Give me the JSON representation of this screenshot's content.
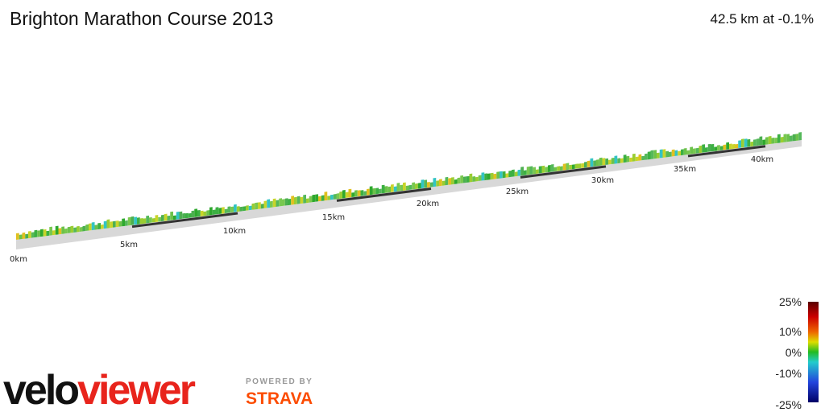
{
  "header": {
    "title": "Brighton Marathon Course 2013",
    "summary": "42.5 km at -0.1%"
  },
  "distance_markers": [
    "0km",
    "5km",
    "10km",
    "15km",
    "20km",
    "25km",
    "30km",
    "35km",
    "40km"
  ],
  "gradient_legend": [
    "25%",
    "10%",
    "0%",
    "-10%",
    "-25%"
  ],
  "footer": {
    "logo_left": "velo",
    "logo_right": "viewer",
    "powered_by": "POWERED BY",
    "strava": "STRAVA"
  }
}
